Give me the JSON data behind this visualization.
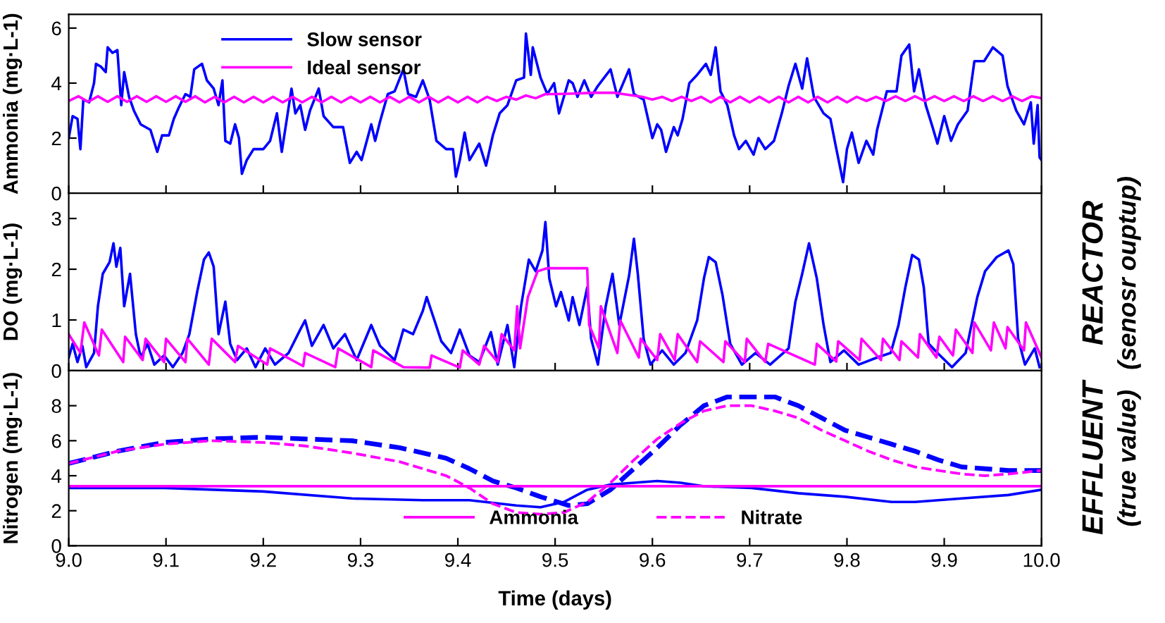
{
  "chart_data": [
    {
      "type": "line",
      "ylabel": "Ammonia (mg·L-1)",
      "xlim": [
        9,
        10
      ],
      "ylim": [
        0,
        6.5
      ],
      "yticks": [
        0,
        2,
        4,
        6
      ],
      "xticks": [
        9,
        9.1,
        9.2,
        9.3,
        9.4,
        9.5,
        9.6,
        9.7,
        9.8,
        9.9,
        10
      ],
      "tick_labels": "y",
      "legend": "top left",
      "grid": false,
      "series": [
        {
          "name": "Slow sensor",
          "color": "#0000ff",
          "line_style": "solid",
          "x": [
            9.0,
            9.004,
            9.009,
            9.012,
            9.015,
            9.021,
            9.026,
            9.028,
            9.033,
            9.038,
            9.04,
            9.045,
            9.05,
            9.054,
            9.057,
            9.062,
            9.067,
            9.074,
            9.084,
            9.091,
            9.096,
            9.103,
            9.108,
            9.113,
            9.12,
            9.125,
            9.129,
            9.137,
            9.142,
            9.149,
            9.154,
            9.158,
            9.161,
            9.166,
            9.171,
            9.175,
            9.178,
            9.183,
            9.19,
            9.2,
            9.207,
            9.214,
            9.219,
            9.229,
            9.233,
            9.238,
            9.243,
            9.248,
            9.257,
            9.262,
            9.272,
            9.282,
            9.289,
            9.296,
            9.301,
            9.311,
            9.315,
            9.32,
            9.328,
            9.335,
            9.344,
            9.349,
            9.357,
            9.364,
            9.371,
            9.378,
            9.388,
            9.395,
            9.398,
            9.402,
            9.407,
            9.412,
            9.422,
            9.429,
            9.436,
            9.443,
            9.451,
            9.46,
            9.468,
            9.47,
            9.475,
            9.477,
            9.485,
            9.492,
            9.499,
            9.504,
            9.514,
            9.518,
            9.523,
            9.53,
            9.537,
            9.544,
            9.557,
            9.564,
            9.576,
            9.581,
            9.591,
            9.6,
            9.605,
            9.609,
            9.614,
            9.622,
            9.626,
            9.631,
            9.638,
            9.646,
            9.655,
            9.66,
            9.665,
            9.67,
            9.677,
            9.684,
            9.689,
            9.696,
            9.704,
            9.709,
            9.716,
            9.725,
            9.733,
            9.74,
            9.747,
            9.754,
            9.759,
            9.766,
            9.776,
            9.783,
            9.788,
            9.796,
            9.8,
            9.805,
            9.812,
            9.82,
            9.827,
            9.831,
            9.841,
            9.851,
            9.856,
            9.864,
            9.869,
            9.874,
            9.881,
            9.888,
            9.893,
            9.9,
            9.907,
            9.914,
            9.924,
            9.931,
            9.941,
            9.95,
            9.96,
            9.965,
            9.974,
            9.982,
            9.989,
            9.992,
            9.996,
            9.998,
            10.0
          ],
          "values": [
            2.0,
            2.8,
            2.7,
            1.6,
            3.4,
            3.3,
            4.0,
            4.7,
            4.6,
            4.4,
            5.3,
            5.1,
            5.2,
            3.2,
            4.4,
            3.5,
            3.0,
            2.5,
            2.3,
            1.5,
            2.1,
            2.1,
            2.7,
            3.1,
            3.6,
            3.5,
            4.5,
            4.7,
            4.1,
            3.8,
            3.2,
            4.1,
            1.9,
            1.8,
            2.5,
            2.0,
            0.7,
            1.2,
            1.6,
            1.6,
            1.9,
            2.9,
            1.5,
            3.8,
            2.9,
            3.2,
            2.3,
            3.0,
            3.8,
            2.8,
            2.4,
            2.4,
            1.1,
            1.5,
            1.2,
            2.5,
            1.9,
            2.6,
            3.6,
            3.7,
            4.5,
            3.6,
            3.5,
            4.1,
            3.4,
            1.9,
            1.6,
            1.6,
            0.6,
            1.2,
            2.2,
            1.2,
            1.8,
            1.0,
            2.1,
            2.9,
            3.2,
            4.1,
            4.2,
            5.8,
            4.3,
            5.3,
            4.2,
            3.6,
            4.0,
            2.9,
            4.1,
            4.0,
            3.5,
            4.1,
            3.5,
            3.9,
            4.5,
            3.5,
            4.5,
            3.6,
            3.4,
            2.0,
            2.5,
            2.3,
            1.5,
            2.4,
            2.1,
            2.7,
            4.0,
            4.3,
            4.7,
            4.3,
            5.3,
            3.7,
            3.2,
            2.1,
            1.6,
            1.9,
            1.4,
            2.0,
            1.6,
            1.9,
            2.9,
            3.9,
            4.7,
            3.8,
            4.9,
            3.5,
            2.9,
            2.7,
            1.8,
            0.4,
            1.6,
            2.2,
            1.1,
            1.9,
            1.4,
            2.3,
            3.7,
            3.7,
            5.0,
            5.4,
            3.7,
            4.5,
            3.2,
            2.4,
            1.8,
            2.8,
            1.9,
            2.5,
            3.0,
            4.8,
            4.8,
            5.3,
            5.0,
            3.9,
            3.0,
            2.5,
            3.3,
            1.8,
            3.2,
            1.3,
            1.2
          ]
        },
        {
          "name": "Ideal sensor",
          "color": "#ff00ff",
          "line_style": "solid",
          "x": [
            9.0,
            9.01,
            9.02,
            9.03,
            9.04,
            9.05,
            9.06,
            9.07,
            9.08,
            9.09,
            9.1,
            9.11,
            9.12,
            9.13,
            9.14,
            9.15,
            9.16,
            9.17,
            9.18,
            9.19,
            9.2,
            9.21,
            9.22,
            9.23,
            9.24,
            9.25,
            9.26,
            9.27,
            9.28,
            9.29,
            9.3,
            9.31,
            9.32,
            9.33,
            9.34,
            9.35,
            9.36,
            9.37,
            9.38,
            9.39,
            9.4,
            9.41,
            9.42,
            9.43,
            9.44,
            9.45,
            9.46,
            9.47,
            9.48,
            9.49,
            9.5,
            9.52,
            9.54,
            9.56,
            9.58,
            9.59,
            9.6,
            9.61,
            9.62,
            9.63,
            9.64,
            9.65,
            9.66,
            9.67,
            9.68,
            9.69,
            9.7,
            9.71,
            9.72,
            9.73,
            9.74,
            9.75,
            9.76,
            9.77,
            9.78,
            9.79,
            9.8,
            9.81,
            9.82,
            9.83,
            9.84,
            9.85,
            9.86,
            9.87,
            9.88,
            9.89,
            9.9,
            9.91,
            9.92,
            9.93,
            9.94,
            9.95,
            9.96,
            9.97,
            9.98,
            9.99,
            10.0
          ],
          "values": [
            3.35,
            3.52,
            3.32,
            3.52,
            3.32,
            3.52,
            3.32,
            3.52,
            3.32,
            3.52,
            3.32,
            3.52,
            3.32,
            3.52,
            3.3,
            3.5,
            3.3,
            3.5,
            3.3,
            3.5,
            3.3,
            3.5,
            3.3,
            3.5,
            3.3,
            3.5,
            3.3,
            3.5,
            3.3,
            3.5,
            3.3,
            3.5,
            3.3,
            3.5,
            3.3,
            3.5,
            3.3,
            3.5,
            3.3,
            3.5,
            3.3,
            3.5,
            3.3,
            3.5,
            3.35,
            3.5,
            3.4,
            3.55,
            3.45,
            3.6,
            3.6,
            3.62,
            3.65,
            3.65,
            3.55,
            3.5,
            3.4,
            3.5,
            3.35,
            3.5,
            3.35,
            3.5,
            3.3,
            3.5,
            3.3,
            3.5,
            3.3,
            3.5,
            3.3,
            3.5,
            3.3,
            3.5,
            3.3,
            3.5,
            3.3,
            3.5,
            3.3,
            3.5,
            3.35,
            3.5,
            3.35,
            3.52,
            3.35,
            3.52,
            3.35,
            3.52,
            3.35,
            3.52,
            3.35,
            3.52,
            3.35,
            3.52,
            3.35,
            3.52,
            3.35,
            3.52,
            3.45
          ]
        }
      ]
    },
    {
      "type": "line",
      "ylabel": "DO (mg·L-1)",
      "xlim": [
        9,
        10
      ],
      "ylim": [
        0,
        3.5
      ],
      "yticks": [
        0,
        1,
        2,
        3
      ],
      "xticks": [
        9,
        9.1,
        9.2,
        9.3,
        9.4,
        9.5,
        9.6,
        9.7,
        9.8,
        9.9,
        10
      ],
      "tick_labels": "y",
      "grid": false,
      "annotations": [
        "REACTOR",
        "(senosr ouptup)"
      ],
      "series": [
        {
          "color": "#0000ff",
          "line_style": "solid",
          "x": [
            9.0,
            9.004,
            9.009,
            9.014,
            9.018,
            9.026,
            9.03,
            9.035,
            9.042,
            9.046,
            9.049,
            9.053,
            9.057,
            9.063,
            9.069,
            9.074,
            9.081,
            9.088,
            9.098,
            9.107,
            9.117,
            9.124,
            9.132,
            9.139,
            9.144,
            9.149,
            9.154,
            9.161,
            9.166,
            9.173,
            9.183,
            9.192,
            9.202,
            9.212,
            9.226,
            9.238,
            9.243,
            9.25,
            9.262,
            9.272,
            9.284,
            9.296,
            9.311,
            9.32,
            9.335,
            9.344,
            9.354,
            9.364,
            9.368,
            9.376,
            9.383,
            9.393,
            9.402,
            9.412,
            9.422,
            9.434,
            9.441,
            9.451,
            9.458,
            9.465,
            9.473,
            9.48,
            9.487,
            9.49,
            9.494,
            9.501,
            9.506,
            9.514,
            9.518,
            9.525,
            9.533,
            9.537,
            9.544,
            9.552,
            9.559,
            9.566,
            9.576,
            9.581,
            9.585,
            9.591,
            9.598,
            9.61,
            9.622,
            9.634,
            9.646,
            9.653,
            9.658,
            9.665,
            9.672,
            9.68,
            9.692,
            9.706,
            9.721,
            9.74,
            9.747,
            9.754,
            9.761,
            9.769,
            9.776,
            9.783,
            9.797,
            9.812,
            9.831,
            9.845,
            9.853,
            9.86,
            9.867,
            9.874,
            9.879,
            9.884,
            9.893,
            9.908,
            9.922,
            9.934,
            9.942,
            9.954,
            9.966,
            9.971,
            9.976,
            9.983,
            9.993,
            9.998
          ],
          "values": [
            0.26,
            0.53,
            0.17,
            0.49,
            0.07,
            0.35,
            1.27,
            1.91,
            2.14,
            2.51,
            2.05,
            2.42,
            1.27,
            1.91,
            0.72,
            0.26,
            0.53,
            0.12,
            0.3,
            0.07,
            0.35,
            0.72,
            1.55,
            2.19,
            2.33,
            2.05,
            0.72,
            1.36,
            0.53,
            0.21,
            0.44,
            0.07,
            0.44,
            0.12,
            0.35,
            0.81,
            0.99,
            0.49,
            0.9,
            0.44,
            0.72,
            0.21,
            0.9,
            0.49,
            0.21,
            0.81,
            0.72,
            1.18,
            1.45,
            0.99,
            0.58,
            0.35,
            0.81,
            0.3,
            0.17,
            0.76,
            0.12,
            0.9,
            0.07,
            1.27,
            2.19,
            1.96,
            2.37,
            2.93,
            1.82,
            1.27,
            1.55,
            0.99,
            1.45,
            0.9,
            1.64,
            0.63,
            0.12,
            1.27,
            1.91,
            0.9,
            1.87,
            2.6,
            1.91,
            0.63,
            0.12,
            0.4,
            0.12,
            0.35,
            0.99,
            1.82,
            2.24,
            2.14,
            1.5,
            0.53,
            0.12,
            0.35,
            0.12,
            0.44,
            1.36,
            1.91,
            2.51,
            1.82,
            0.9,
            0.17,
            0.4,
            0.12,
            0.26,
            0.35,
            0.9,
            1.64,
            2.28,
            2.19,
            1.64,
            0.53,
            0.35,
            0.07,
            0.35,
            1.45,
            1.96,
            2.24,
            2.37,
            2.1,
            0.63,
            0.12,
            0.44,
            0.07
          ]
        },
        {
          "color": "#ff00ff",
          "line_style": "solid",
          "x": [
            9.0,
            9.012,
            9.016,
            9.031,
            9.034,
            9.056,
            9.058,
            9.076,
            9.079,
            9.098,
            9.1,
            9.12,
            9.122,
            9.144,
            9.147,
            9.171,
            9.174,
            9.204,
            9.207,
            9.241,
            9.243,
            9.274,
            9.277,
            9.311,
            9.313,
            9.344,
            9.371,
            9.373,
            9.402,
            9.405,
            9.422,
            9.427,
            9.441,
            9.445,
            9.458,
            9.461,
            9.464,
            9.472,
            9.482,
            9.492,
            9.533,
            9.535,
            9.545,
            9.547,
            9.564,
            9.567,
            9.586,
            9.588,
            9.605,
            9.608,
            9.623,
            9.626,
            9.646,
            9.649,
            9.673,
            9.675,
            9.695,
            9.697,
            9.716,
            9.719,
            9.767,
            9.769,
            9.789,
            9.791,
            9.813,
            9.815,
            9.835,
            9.837,
            9.854,
            9.856,
            9.873,
            9.875,
            9.892,
            9.895,
            9.909,
            9.912,
            9.929,
            9.931,
            9.948,
            9.951,
            9.963,
            9.965,
            9.982,
            9.984,
            10.0
          ],
          "values": [
            0.72,
            0.35,
            0.95,
            0.3,
            0.81,
            0.17,
            0.67,
            0.21,
            0.63,
            0.17,
            0.63,
            0.17,
            0.63,
            0.12,
            0.63,
            0.17,
            0.49,
            0.12,
            0.44,
            0.09,
            0.35,
            0.07,
            0.44,
            0.07,
            0.4,
            0.07,
            0.06,
            0.3,
            0.06,
            0.4,
            0.12,
            0.49,
            0.17,
            0.72,
            0.4,
            1.27,
            0.44,
            1.45,
            1.96,
            2.02,
            2.02,
            0.9,
            0.44,
            1.27,
            0.35,
            0.99,
            0.26,
            0.63,
            0.21,
            0.72,
            0.21,
            0.72,
            0.17,
            0.58,
            0.17,
            0.58,
            0.17,
            0.63,
            0.17,
            0.53,
            0.12,
            0.53,
            0.18,
            0.58,
            0.21,
            0.63,
            0.21,
            0.63,
            0.21,
            0.58,
            0.26,
            0.72,
            0.26,
            0.67,
            0.3,
            0.81,
            0.35,
            0.95,
            0.4,
            0.95,
            0.44,
            0.86,
            0.4,
            0.95,
            0.26
          ]
        }
      ]
    },
    {
      "type": "line",
      "ylabel": "Nitrogen (mg·L-1)",
      "xlabel": "Time (days)",
      "xlim": [
        9,
        10
      ],
      "ylim": [
        0,
        10
      ],
      "yticks": [
        0,
        2,
        4,
        6,
        8
      ],
      "xticks": [
        {
          "value": 9,
          "label": "9.0"
        },
        9.1,
        9.2,
        9.3,
        9.4,
        9.5,
        9.6,
        9.7,
        9.8,
        9.9,
        {
          "value": 10,
          "label": "10.0"
        }
      ],
      "legend": "bottom",
      "grid": false,
      "annotations": [
        "EFFLUENT",
        "(true value)"
      ],
      "series": [
        {
          "color": "#0000ff",
          "line_style": "solid",
          "x": [
            9.0,
            9.098,
            9.2,
            9.291,
            9.364,
            9.412,
            9.46,
            9.485,
            9.509,
            9.533,
            9.557,
            9.605,
            9.629,
            9.653,
            9.702,
            9.75,
            9.798,
            9.846,
            9.87,
            9.918,
            9.966,
            10.0
          ],
          "values": [
            3.3,
            3.3,
            3.1,
            2.7,
            2.6,
            2.6,
            2.3,
            2.2,
            2.5,
            3.2,
            3.5,
            3.7,
            3.6,
            3.4,
            3.3,
            3.0,
            2.8,
            2.5,
            2.5,
            2.7,
            2.9,
            3.2
          ]
        },
        {
          "color": "#0000ff",
          "line_style": "dashed",
          "x": [
            9.0,
            9.05,
            9.098,
            9.146,
            9.2,
            9.243,
            9.291,
            9.34,
            9.388,
            9.412,
            9.436,
            9.46,
            9.485,
            9.514,
            9.533,
            9.557,
            9.581,
            9.605,
            9.629,
            9.653,
            9.677,
            9.702,
            9.726,
            9.75,
            9.774,
            9.798,
            9.822,
            9.846,
            9.87,
            9.894,
            9.918,
            9.942,
            9.966,
            10.0
          ],
          "values": [
            4.7,
            5.4,
            5.9,
            6.1,
            6.2,
            6.1,
            6.0,
            5.6,
            5.0,
            4.4,
            3.7,
            3.3,
            2.8,
            2.3,
            2.4,
            3.2,
            4.4,
            5.6,
            6.9,
            8.0,
            8.5,
            8.5,
            8.5,
            8.0,
            7.3,
            6.6,
            6.2,
            5.8,
            5.4,
            4.9,
            4.5,
            4.4,
            4.3,
            4.3
          ]
        },
        {
          "name": "Ammonia",
          "color": "#ff00ff",
          "line_style": "solid",
          "x": [
            9.0,
            9.5,
            10.0
          ],
          "values": [
            3.4,
            3.4,
            3.4
          ]
        },
        {
          "name": "Nitrate",
          "color": "#ff00ff",
          "line_style": "dashed",
          "x": [
            9.0,
            9.05,
            9.098,
            9.146,
            9.2,
            9.243,
            9.291,
            9.34,
            9.388,
            9.412,
            9.436,
            9.46,
            9.485,
            9.509,
            9.533,
            9.557,
            9.581,
            9.605,
            9.629,
            9.653,
            9.677,
            9.702,
            9.726,
            9.75,
            9.774,
            9.798,
            9.822,
            9.846,
            9.87,
            9.894,
            9.918,
            9.942,
            9.966,
            10.0
          ],
          "values": [
            4.7,
            5.4,
            5.8,
            6.0,
            5.9,
            5.7,
            5.3,
            4.8,
            4.0,
            3.3,
            2.4,
            1.9,
            1.8,
            1.9,
            2.5,
            3.6,
            4.9,
            6.1,
            7.0,
            7.7,
            8.0,
            8.0,
            7.7,
            7.3,
            6.6,
            6.0,
            5.4,
            4.9,
            4.5,
            4.3,
            4.1,
            4.0,
            4.1,
            4.3
          ]
        }
      ]
    }
  ]
}
